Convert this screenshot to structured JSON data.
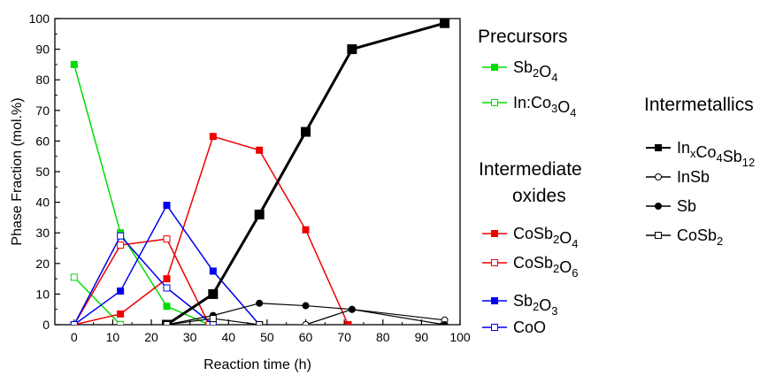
{
  "chart_data": {
    "type": "line",
    "xlabel": "Reaction time (h)",
    "ylabel": "Phase Fraction (mol.%)",
    "xlim": [
      -5,
      100
    ],
    "ylim": [
      0,
      100
    ],
    "xticks": [
      0,
      10,
      20,
      30,
      40,
      50,
      60,
      70,
      80,
      90,
      100
    ],
    "yticks": [
      0,
      10,
      20,
      30,
      40,
      50,
      60,
      70,
      80,
      90,
      100
    ],
    "grid": false,
    "legend_groups": [
      {
        "heading": [
          "Precursors"
        ],
        "series": [
          0,
          1
        ]
      },
      {
        "heading": [
          "Intermediate",
          "oxides"
        ],
        "series": [
          2,
          3,
          4,
          5
        ]
      },
      {
        "heading": [
          "Intermetallics"
        ],
        "series": [
          6,
          7,
          8,
          9
        ]
      }
    ],
    "series": [
      {
        "name": "Sb2O4",
        "label_parts": [
          [
            "Sb",
            ""
          ],
          [
            "2",
            "sub"
          ],
          [
            "O",
            ""
          ],
          [
            "4",
            "sub"
          ]
        ],
        "color": "#00dd00",
        "marker": "square-filled",
        "line_width": 1.5,
        "x": [
          0,
          12,
          24,
          35
        ],
        "y": [
          85,
          30,
          6,
          0
        ]
      },
      {
        "name": "In:Co3O4",
        "label_parts": [
          [
            "In:Co",
            ""
          ],
          [
            "3",
            "sub"
          ],
          [
            "O",
            ""
          ],
          [
            "4",
            "sub"
          ]
        ],
        "color": "#00dd00",
        "marker": "square-open",
        "line_width": 1.5,
        "x": [
          0,
          12
        ],
        "y": [
          15.5,
          0
        ]
      },
      {
        "name": "CoSb2O4",
        "label_parts": [
          [
            "CoSb",
            ""
          ],
          [
            "2",
            "sub"
          ],
          [
            "O",
            ""
          ],
          [
            "4",
            "sub"
          ]
        ],
        "color": "#ee0000",
        "marker": "square-filled",
        "line_width": 1.5,
        "x": [
          0,
          12,
          24,
          36,
          48,
          60,
          71
        ],
        "y": [
          0,
          3.5,
          15,
          61.5,
          57,
          31,
          0
        ]
      },
      {
        "name": "CoSb2O6",
        "label_parts": [
          [
            "CoSb",
            ""
          ],
          [
            "2",
            "sub"
          ],
          [
            "O",
            ""
          ],
          [
            "6",
            "sub"
          ]
        ],
        "color": "#ee0000",
        "marker": "square-open",
        "line_width": 1.5,
        "x": [
          0,
          12,
          24,
          35
        ],
        "y": [
          0,
          26,
          28,
          0
        ]
      },
      {
        "name": "Sb2O3",
        "label_parts": [
          [
            "Sb",
            ""
          ],
          [
            "2",
            "sub"
          ],
          [
            "O",
            ""
          ],
          [
            "3",
            "sub"
          ]
        ],
        "color": "#0000ee",
        "marker": "square-filled",
        "line_width": 1.5,
        "x": [
          0,
          12,
          24,
          36,
          48
        ],
        "y": [
          0,
          11,
          39,
          17.5,
          0
        ]
      },
      {
        "name": "CoO",
        "label_parts": [
          [
            "CoO",
            ""
          ]
        ],
        "color": "#0000ee",
        "marker": "square-open",
        "line_width": 1.5,
        "x": [
          0,
          12,
          24,
          36
        ],
        "y": [
          0,
          29,
          12,
          0
        ]
      },
      {
        "name": "InxCo4Sb12",
        "label_parts": [
          [
            "In",
            ""
          ],
          [
            "x",
            "sub"
          ],
          [
            "Co",
            ""
          ],
          [
            "4",
            "sub"
          ],
          [
            "Sb",
            ""
          ],
          [
            "12",
            "sub"
          ]
        ],
        "color": "#000000",
        "marker": "square-filled",
        "line_width": 3,
        "marker_size": 10,
        "x": [
          24,
          36,
          48,
          60,
          72,
          96
        ],
        "y": [
          0,
          10,
          36,
          63,
          90,
          98.5
        ]
      },
      {
        "name": "InSb",
        "label_parts": [
          [
            "InSb",
            ""
          ]
        ],
        "color": "#000000",
        "marker": "circle-open",
        "line_width": 1.2,
        "x": [
          60,
          72,
          96
        ],
        "y": [
          0,
          5,
          1.5
        ]
      },
      {
        "name": "Sb",
        "label_parts": [
          [
            "Sb",
            ""
          ]
        ],
        "color": "#000000",
        "marker": "circle-filled",
        "line_width": 1.2,
        "x": [
          24,
          36,
          48,
          60,
          72,
          96
        ],
        "y": [
          0,
          3,
          7,
          6.2,
          5,
          0
        ]
      },
      {
        "name": "CoSb2",
        "label_parts": [
          [
            "CoSb",
            ""
          ],
          [
            "2",
            "sub"
          ]
        ],
        "color": "#000000",
        "marker": "square-open",
        "line_width": 1.2,
        "x": [
          24,
          36,
          48
        ],
        "y": [
          0,
          2,
          0
        ]
      }
    ]
  }
}
